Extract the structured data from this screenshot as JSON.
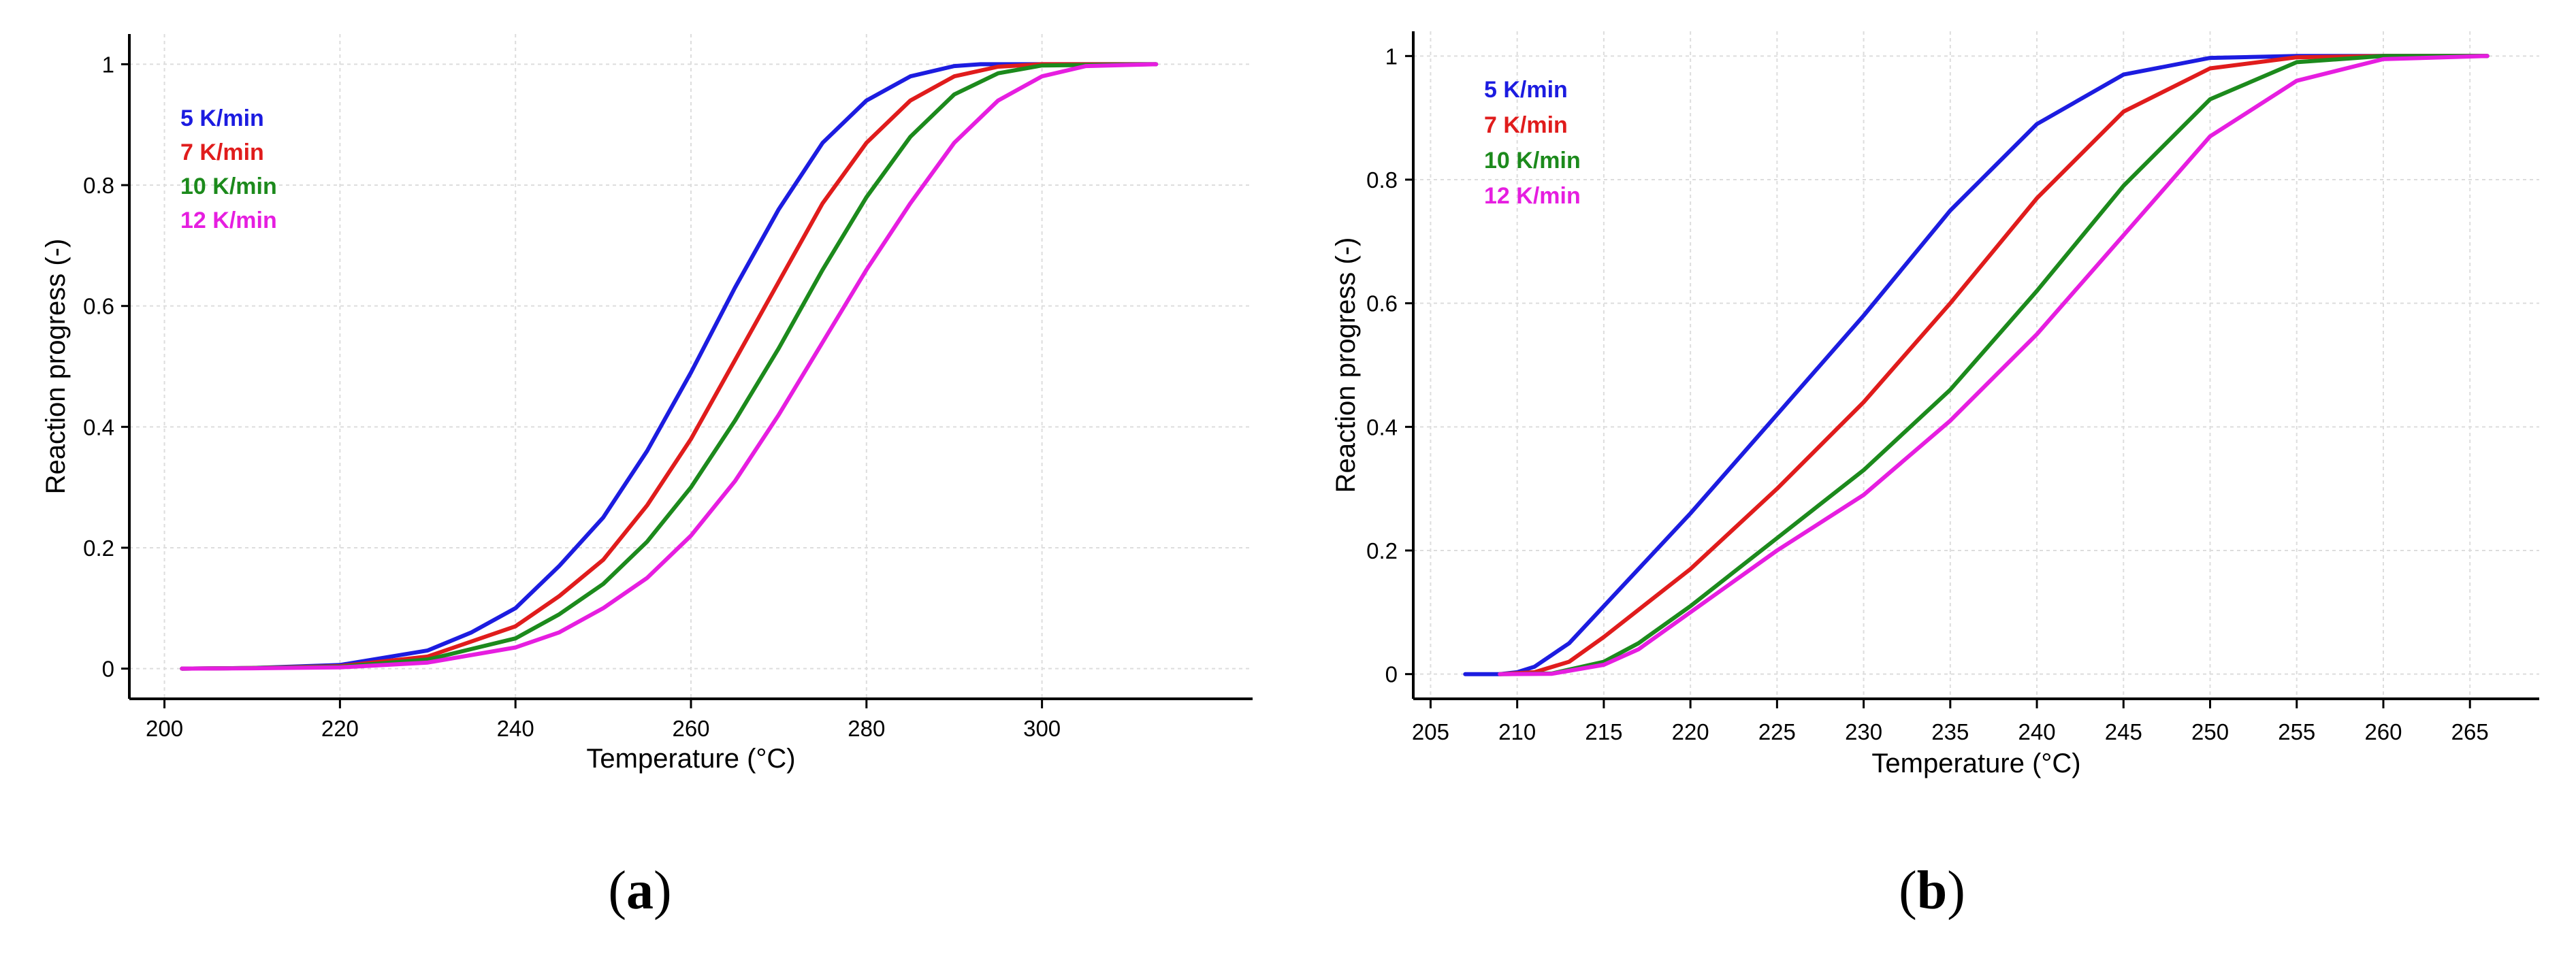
{
  "chart_data": [
    {
      "panel_label": "a",
      "type": "line",
      "xlabel": "Temperature (°C)",
      "ylabel": "Reaction progress (-)",
      "xlim": [
        196,
        324
      ],
      "ylim": [
        -0.05,
        1.05
      ],
      "x_ticks": [
        "200",
        "220",
        "240",
        "260",
        "280",
        "300"
      ],
      "y_ticks": [
        "0",
        "0.2",
        "0.4",
        "0.6",
        "0.8",
        "1"
      ],
      "x_tick_values": [
        200,
        220,
        240,
        260,
        280,
        300
      ],
      "y_tick_values": [
        0,
        0.2,
        0.4,
        0.6,
        0.8,
        1
      ],
      "legend_position": "top-left",
      "series": [
        {
          "name": "5 K/min",
          "color": "#1c1ce0",
          "x": [
            202,
            210,
            220,
            230,
            235,
            240,
            245,
            250,
            255,
            260,
            265,
            270,
            275,
            280,
            285,
            290,
            293,
            300,
            313
          ],
          "y": [
            0,
            0.001,
            0.006,
            0.03,
            0.06,
            0.1,
            0.17,
            0.25,
            0.36,
            0.49,
            0.63,
            0.76,
            0.87,
            0.94,
            0.98,
            0.997,
            1,
            1,
            1
          ]
        },
        {
          "name": "7 K/min",
          "color": "#e01c1c",
          "x": [
            202,
            210,
            220,
            230,
            240,
            245,
            250,
            255,
            260,
            265,
            270,
            275,
            280,
            285,
            290,
            295,
            300,
            313
          ],
          "y": [
            0,
            0.001,
            0.004,
            0.02,
            0.07,
            0.12,
            0.18,
            0.27,
            0.38,
            0.51,
            0.64,
            0.77,
            0.87,
            0.94,
            0.98,
            0.996,
            1,
            1
          ]
        },
        {
          "name": "10 K/min",
          "color": "#1c8a1c",
          "x": [
            202,
            210,
            220,
            230,
            240,
            245,
            250,
            255,
            260,
            265,
            270,
            275,
            280,
            285,
            290,
            295,
            300,
            313
          ],
          "y": [
            0,
            0.001,
            0.003,
            0.015,
            0.05,
            0.09,
            0.14,
            0.21,
            0.3,
            0.41,
            0.53,
            0.66,
            0.78,
            0.88,
            0.95,
            0.985,
            0.998,
            1
          ]
        },
        {
          "name": "12 K/min",
          "color": "#e61ee0",
          "x": [
            202,
            210,
            220,
            230,
            240,
            245,
            250,
            255,
            260,
            265,
            270,
            275,
            280,
            285,
            290,
            295,
            300,
            305,
            313
          ],
          "y": [
            0,
            0.0005,
            0.002,
            0.01,
            0.035,
            0.06,
            0.1,
            0.15,
            0.22,
            0.31,
            0.42,
            0.54,
            0.66,
            0.77,
            0.87,
            0.94,
            0.98,
            0.997,
            1
          ]
        }
      ]
    },
    {
      "panel_label": "b",
      "type": "line",
      "xlabel": "Temperature (°C)",
      "ylabel": "Reaction progress (-)",
      "xlim": [
        204,
        269
      ],
      "ylim": [
        -0.04,
        1.04
      ],
      "x_ticks": [
        "205",
        "210",
        "215",
        "220",
        "225",
        "230",
        "235",
        "240",
        "245",
        "250",
        "255",
        "260",
        "265"
      ],
      "y_ticks": [
        "0",
        "0.2",
        "0.4",
        "0.6",
        "0.8",
        "1"
      ],
      "x_tick_values": [
        205,
        210,
        215,
        220,
        225,
        230,
        235,
        240,
        245,
        250,
        255,
        260,
        265
      ],
      "y_tick_values": [
        0,
        0.2,
        0.4,
        0.6,
        0.8,
        1
      ],
      "legend_position": "top-left",
      "series": [
        {
          "name": "5 K/min",
          "color": "#1c1ce0",
          "x": [
            207,
            209,
            210,
            211,
            213,
            215,
            220,
            225,
            230,
            235,
            240,
            245,
            250,
            255,
            260,
            266
          ],
          "y": [
            0,
            0,
            0.003,
            0.012,
            0.05,
            0.11,
            0.26,
            0.42,
            0.58,
            0.75,
            0.89,
            0.97,
            0.997,
            1,
            1,
            1
          ]
        },
        {
          "name": "7 K/min",
          "color": "#e01c1c",
          "x": [
            209,
            211,
            213,
            215,
            220,
            225,
            230,
            235,
            240,
            245,
            250,
            255,
            260,
            266
          ],
          "y": [
            0,
            0.003,
            0.02,
            0.06,
            0.17,
            0.3,
            0.44,
            0.6,
            0.77,
            0.91,
            0.98,
            0.998,
            1,
            1
          ]
        },
        {
          "name": "10 K/min",
          "color": "#1c8a1c",
          "x": [
            209,
            212,
            215,
            217,
            220,
            225,
            230,
            235,
            240,
            245,
            250,
            255,
            260,
            266
          ],
          "y": [
            0,
            0.001,
            0.02,
            0.05,
            0.11,
            0.22,
            0.33,
            0.46,
            0.62,
            0.79,
            0.93,
            0.99,
            1,
            1
          ]
        },
        {
          "name": "12 K/min",
          "color": "#e61ee0",
          "x": [
            209,
            212,
            215,
            217,
            220,
            225,
            230,
            235,
            240,
            245,
            250,
            255,
            260,
            266
          ],
          "y": [
            0,
            0.0005,
            0.015,
            0.04,
            0.1,
            0.2,
            0.29,
            0.41,
            0.55,
            0.71,
            0.87,
            0.96,
            0.995,
            1
          ]
        }
      ]
    }
  ]
}
